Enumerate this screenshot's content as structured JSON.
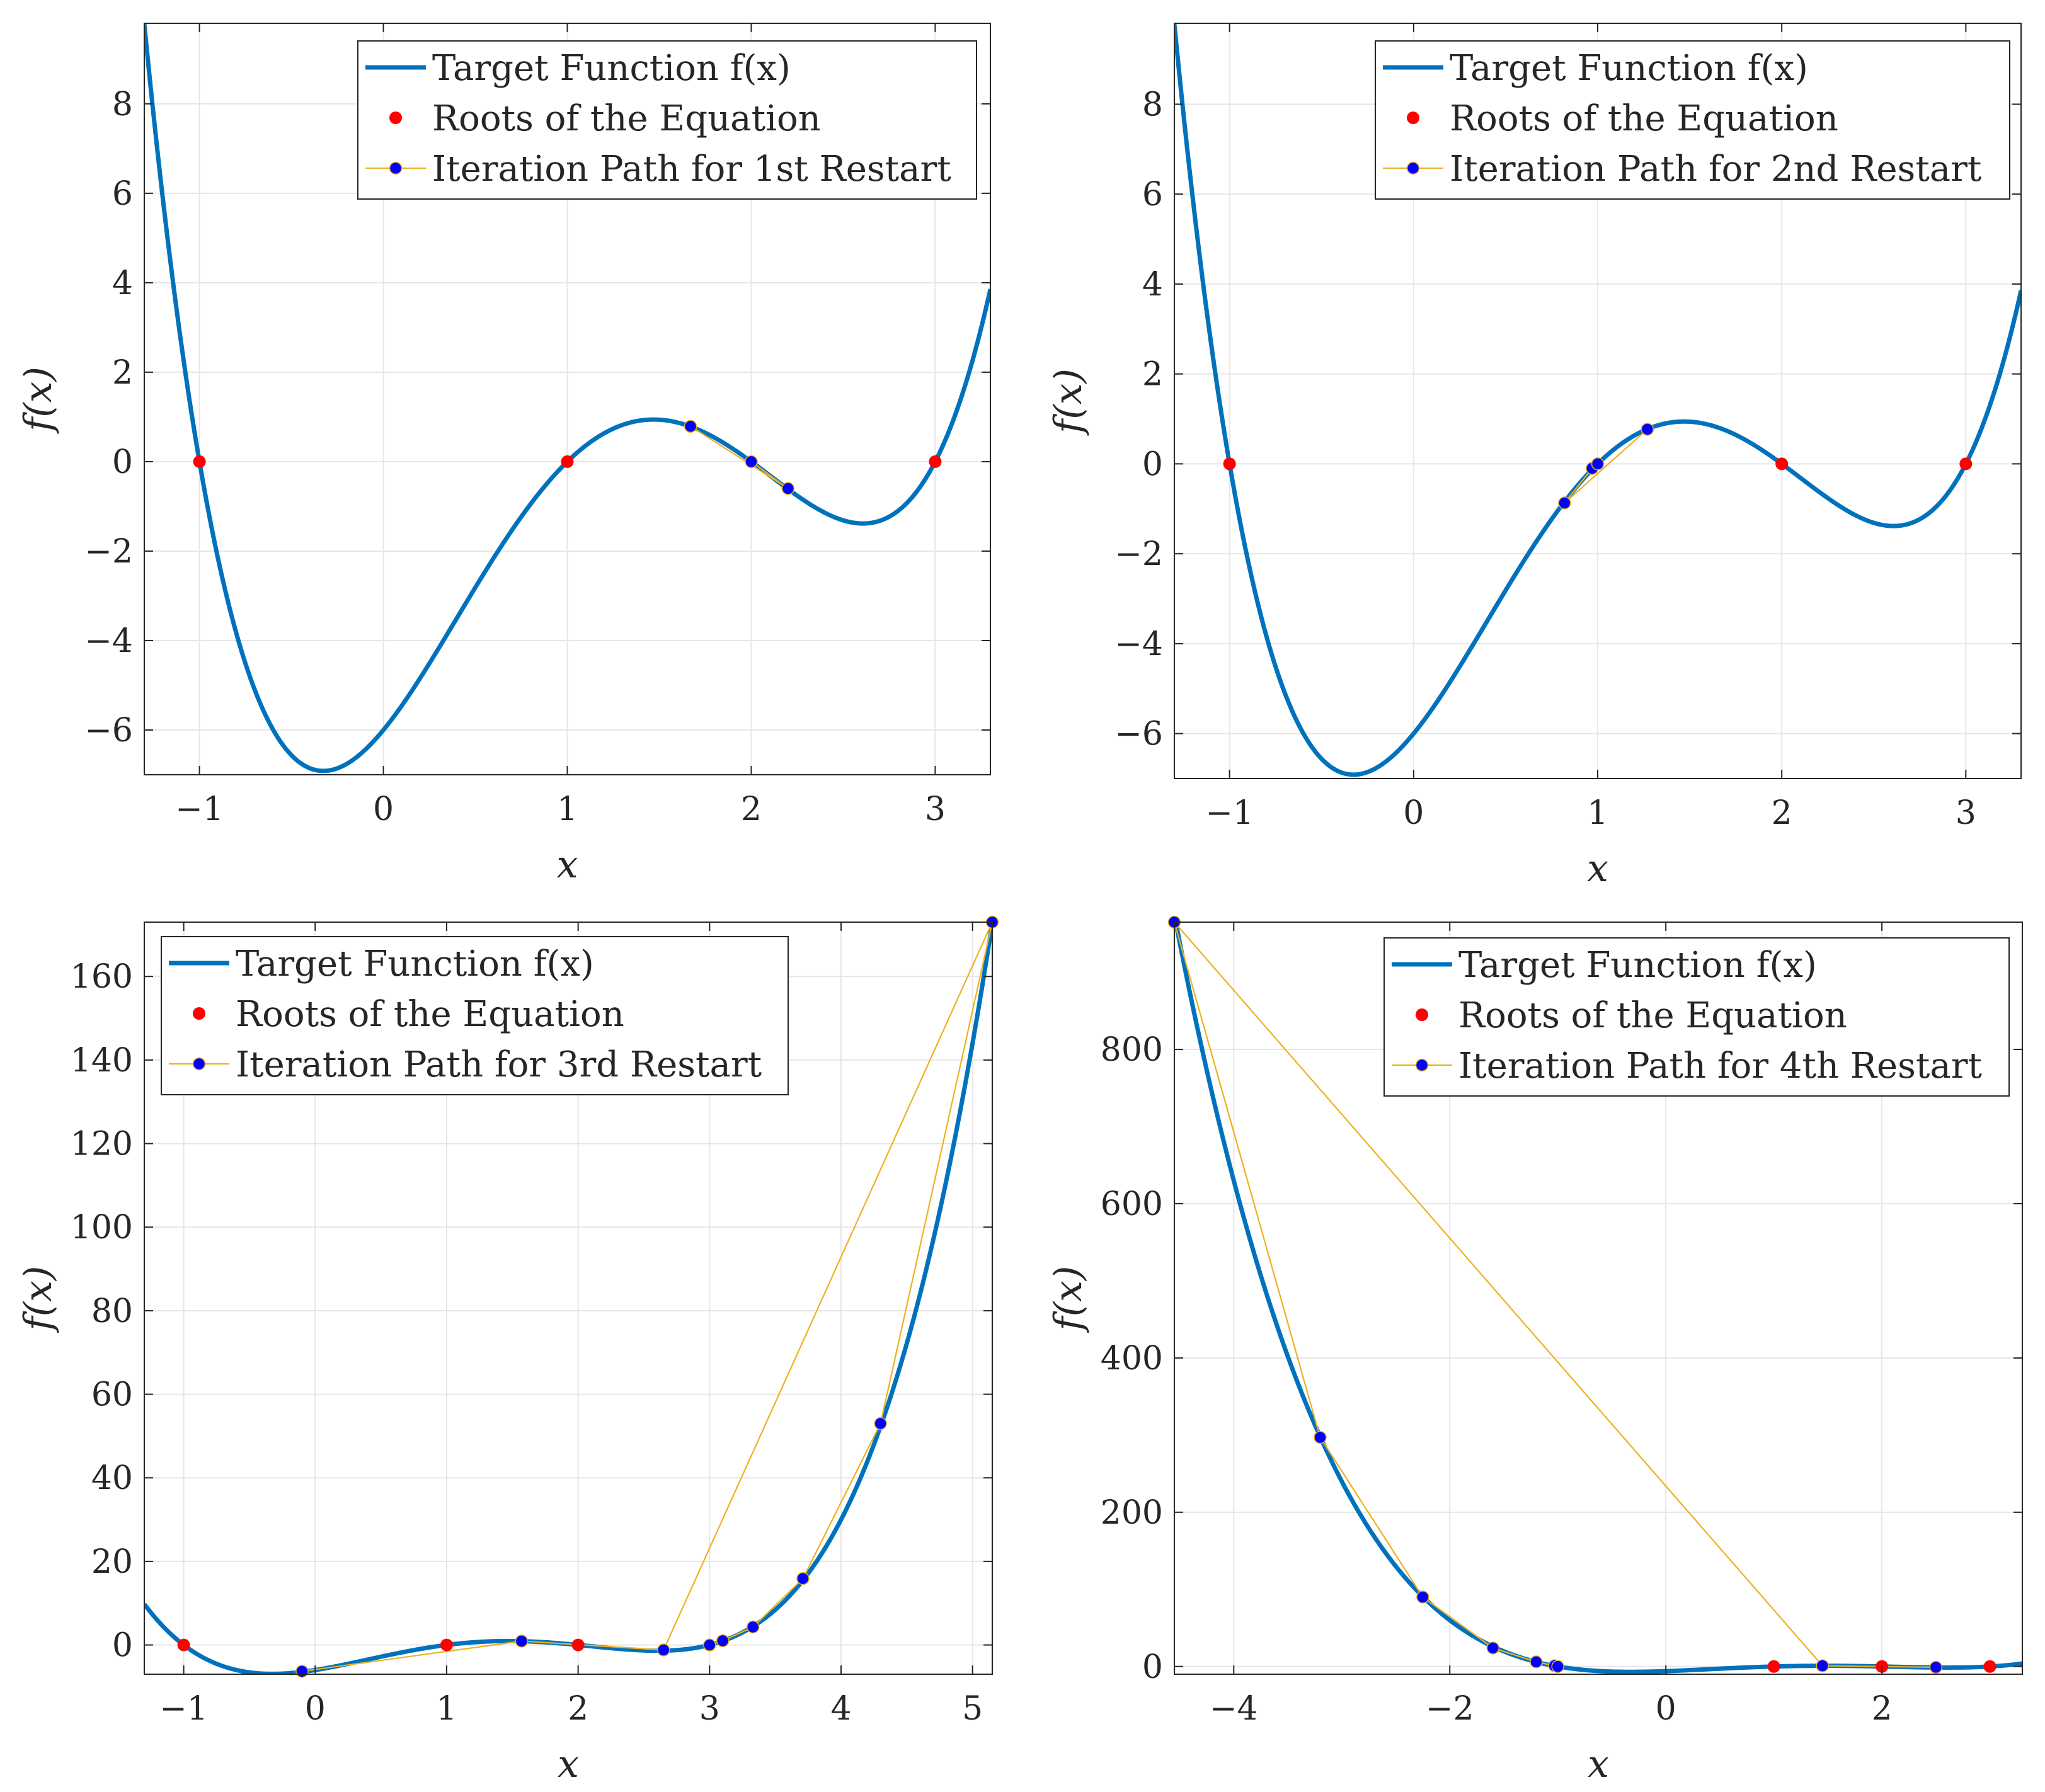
{
  "figure": {
    "colors": {
      "curve": "#0072BD",
      "roots": "#FF0000",
      "path_line": "#EDB120",
      "path_marker": "#0000FF",
      "grid": "#E6E6E6",
      "axes": "#262626"
    }
  },
  "chart_data": [
    {
      "type": "line",
      "panel": "top-left",
      "xlabel": "x",
      "ylabel": "f(x)",
      "xlim": [
        -1.3,
        3.3
      ],
      "ylim": [
        -7.0,
        9.8
      ],
      "xticks": [
        -1,
        0,
        1,
        2,
        3
      ],
      "xtick_labels": [
        "−1",
        "0",
        "1",
        "2",
        "3"
      ],
      "yticks": [
        -6,
        -4,
        -2,
        0,
        2,
        4,
        6,
        8
      ],
      "ytick_labels": [
        "−6",
        "−4",
        "−2",
        "0",
        "2",
        "4",
        "6",
        "8"
      ],
      "grid": true,
      "legend_position": "top-right",
      "legend": [
        "Target Function f(x)",
        "Roots of the Equation",
        "Iteration Path for 1st Restart"
      ],
      "function": "f(x) = (x+1)(x-1)(x-2)(x-3)",
      "roots": [
        [
          -1,
          0
        ],
        [
          1,
          0
        ],
        [
          2,
          0
        ],
        [
          3,
          0
        ]
      ],
      "path": [
        [
          1.67,
          0.79
        ],
        [
          2.2,
          -0.6
        ],
        [
          2.0,
          0.0
        ]
      ]
    },
    {
      "type": "line",
      "panel": "top-right",
      "xlabel": "x",
      "ylabel": "f(x)",
      "xlim": [
        -1.3,
        3.3
      ],
      "ylim": [
        -7.0,
        9.8
      ],
      "xticks": [
        -1,
        0,
        1,
        2,
        3
      ],
      "xtick_labels": [
        "−1",
        "0",
        "1",
        "2",
        "3"
      ],
      "yticks": [
        -6,
        -4,
        -2,
        0,
        2,
        4,
        6,
        8
      ],
      "ytick_labels": [
        "−6",
        "−4",
        "−2",
        "0",
        "2",
        "4",
        "6",
        "8"
      ],
      "grid": true,
      "legend_position": "top-right",
      "legend": [
        "Target Function f(x)",
        "Roots of the Equation",
        "Iteration Path for 2nd Restart"
      ],
      "function": "f(x) = (x+1)(x-1)(x-2)(x-3)",
      "roots": [
        [
          -1,
          0
        ],
        [
          1,
          0
        ],
        [
          2,
          0
        ],
        [
          3,
          0
        ]
      ],
      "path": [
        [
          1.27,
          0.77
        ],
        [
          0.82,
          -0.87
        ],
        [
          0.97,
          -0.1
        ],
        [
          1.0,
          0.0
        ]
      ]
    },
    {
      "type": "line",
      "panel": "bottom-left",
      "xlabel": "x",
      "ylabel": "f(x)",
      "xlim": [
        -1.3,
        5.15
      ],
      "ylim": [
        -7.0,
        173
      ],
      "xticks": [
        -1,
        0,
        1,
        2,
        3,
        4,
        5
      ],
      "xtick_labels": [
        "−1",
        "0",
        "1",
        "2",
        "3",
        "4",
        "5"
      ],
      "yticks": [
        0,
        20,
        40,
        60,
        80,
        100,
        120,
        140,
        160
      ],
      "ytick_labels": [
        "0",
        "20",
        "40",
        "60",
        "80",
        "100",
        "120",
        "140",
        "160"
      ],
      "grid": true,
      "legend_position": "top-left",
      "legend": [
        "Target Function f(x)",
        "Roots of the Equation",
        "Iteration Path for 3rd Restart"
      ],
      "function": "f(x) = (x+1)(x-1)(x-2)(x-3)",
      "roots": [
        [
          -1,
          0
        ],
        [
          1,
          0
        ],
        [
          2,
          0
        ],
        [
          3,
          0
        ]
      ],
      "path": [
        [
          -0.1,
          -6.3
        ],
        [
          1.57,
          0.93
        ],
        [
          2.65,
          -1.2
        ],
        [
          5.15,
          173
        ],
        [
          4.3,
          53
        ],
        [
          3.71,
          15.9
        ],
        [
          3.33,
          4.3
        ],
        [
          3.1,
          1.0
        ],
        [
          3.0,
          0.0
        ]
      ]
    },
    {
      "type": "line",
      "panel": "bottom-right",
      "xlabel": "x",
      "ylabel": "f(x)",
      "xlim": [
        -4.55,
        3.3
      ],
      "ylim": [
        -10,
        965
      ],
      "xticks": [
        -4,
        -2,
        0,
        2
      ],
      "xtick_labels": [
        "−4",
        "−2",
        "0",
        "2"
      ],
      "yticks": [
        0,
        200,
        400,
        600,
        800
      ],
      "ytick_labels": [
        "0",
        "200",
        "400",
        "600",
        "800"
      ],
      "grid": true,
      "legend_position": "top-right",
      "legend": [
        "Target Function f(x)",
        "Roots of the Equation",
        "Iteration Path for 4th Restart"
      ],
      "function": "f(x) = (x+1)(x-1)(x-2)(x-3)",
      "roots": [
        [
          -1,
          0
        ],
        [
          1,
          0
        ],
        [
          2,
          0
        ],
        [
          3,
          0
        ]
      ],
      "path": [
        [
          2.5,
          -1.0
        ],
        [
          1.45,
          0.93
        ],
        [
          -4.55,
          965
        ],
        [
          -3.2,
          297
        ],
        [
          -2.25,
          90
        ],
        [
          -1.6,
          24
        ],
        [
          -1.2,
          6
        ],
        [
          -1.03,
          1
        ],
        [
          -1.0,
          0
        ]
      ]
    }
  ]
}
